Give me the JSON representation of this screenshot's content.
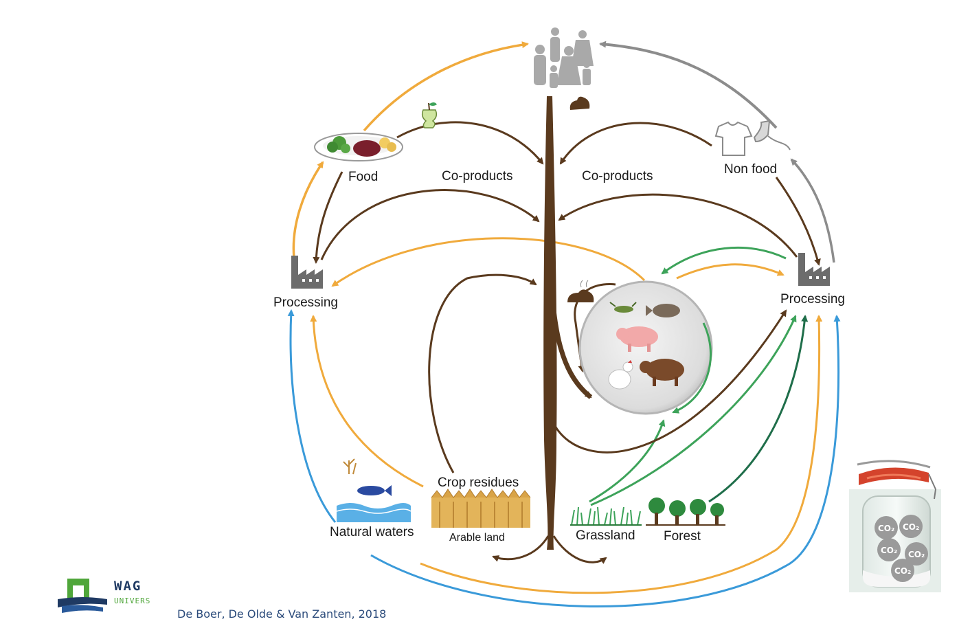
{
  "labels": {
    "food": "Food",
    "co_products_left": "Co-products",
    "co_products_right": "Co-products",
    "non_food": "Non food",
    "processing_left": "Processing",
    "processing_right": "Processing",
    "crop_residues": "Crop residues",
    "natural_waters": "Natural waters",
    "arable_land": "Arable land",
    "grassland": "Grassland",
    "forest": "Forest"
  },
  "jar": {
    "co2_labels": [
      "CO₂",
      "CO₂",
      "CO₂",
      "CO₂",
      "CO₂"
    ]
  },
  "logo": {
    "name": "WAG",
    "sub": "UNIVERS"
  },
  "citation": "De Boer, De Olde & Van Zanten, 2018",
  "colors": {
    "brown": "#5a3a1e",
    "orange": "#f0aa3c",
    "gray": "#8c8c8c",
    "green": "#3da35a",
    "dark_green": "#1f6e4a",
    "blue": "#3a9ad9"
  }
}
